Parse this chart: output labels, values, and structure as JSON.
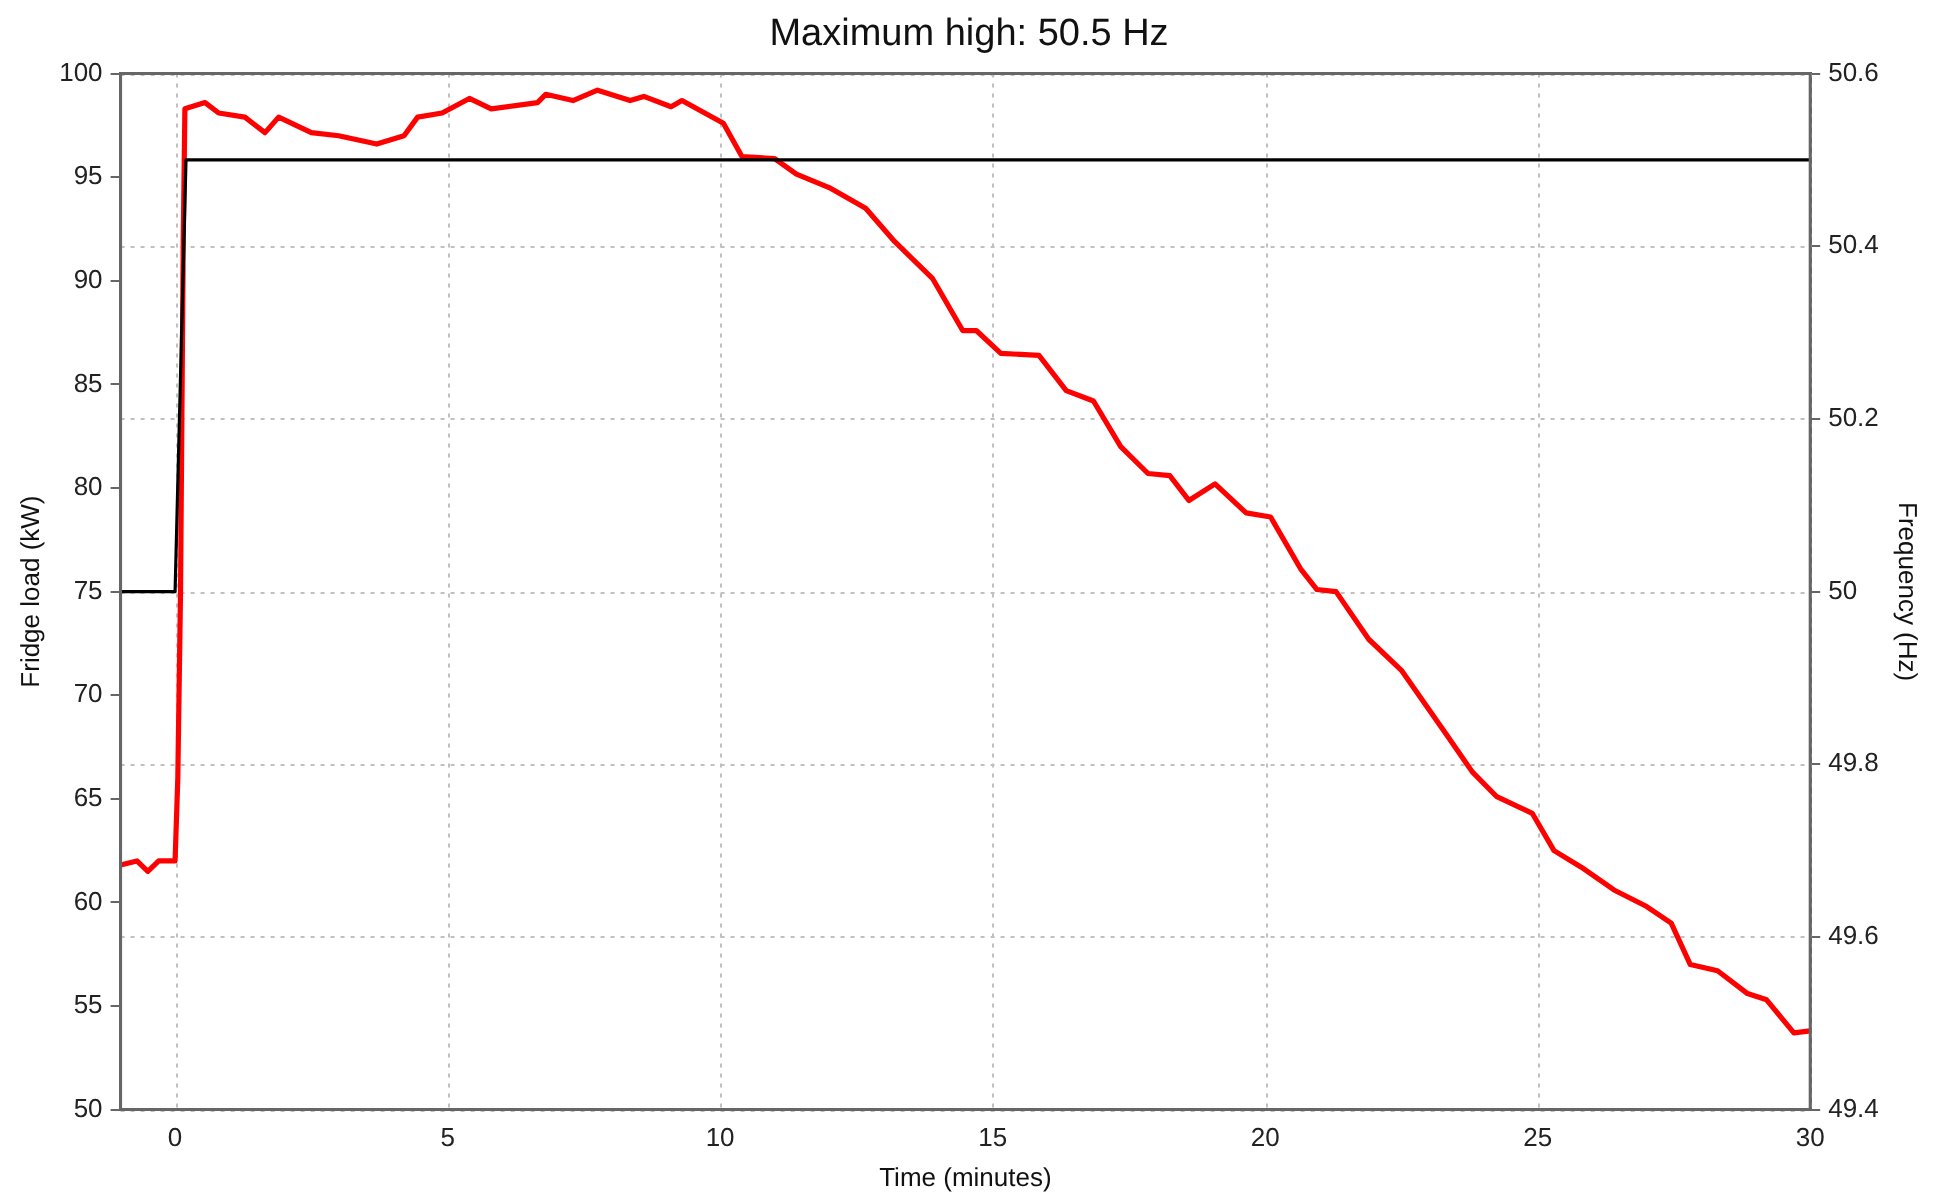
{
  "chart_data": {
    "type": "line",
    "title": "Maximum high: 50.5 Hz",
    "xlabel": "Time (minutes)",
    "ylabel": "Fridge load (kW)",
    "y2label": "Frequency (Hz)",
    "xlim": [
      -1,
      30
    ],
    "xticks": [
      0,
      5,
      10,
      15,
      20,
      25,
      30
    ],
    "ylim": [
      50,
      100
    ],
    "yticks": [
      50,
      55,
      60,
      65,
      70,
      75,
      80,
      85,
      90,
      95,
      100
    ],
    "y2lim": [
      49.4,
      50.6
    ],
    "y2ticks": [
      49.4,
      49.6,
      49.8,
      50,
      50.2,
      50.4,
      50.6
    ],
    "grid": true,
    "legend": false,
    "marker": "none",
    "line_style": "solid",
    "series": [
      {
        "color": "#ff0000",
        "x": [
          -1,
          -0.7,
          -0.5,
          -0.3,
          -0.1,
          0,
          0.05,
          0.1,
          0.15,
          0.18,
          0.55,
          0.8,
          1.28,
          1.65,
          1.9,
          2.5,
          3.0,
          3.7,
          4.2,
          4.45,
          4.9,
          5.4,
          5.8,
          6.65,
          6.8,
          7.3,
          7.75,
          8.35,
          8.6,
          9.1,
          9.3,
          10.06,
          10.4,
          11.0,
          11.4,
          12.0,
          12.67,
          13.2,
          13.9,
          14.45,
          14.7,
          15.15,
          15.85,
          16.35,
          16.85,
          17.35,
          17.85,
          18.25,
          18.6,
          19.08,
          19.65,
          20.1,
          20.65,
          20.95,
          21.3,
          21.9,
          22.5,
          23.3,
          23.8,
          24.25,
          24.9,
          25.3,
          25.8,
          26.4,
          27.0,
          27.45,
          27.8,
          28.3,
          28.85,
          29.2,
          29.7,
          30
        ],
        "values": [
          61.8,
          62,
          61.5,
          62,
          62,
          62,
          66,
          75,
          92,
          98.3,
          98.6,
          98.1,
          97.9,
          97.15,
          97.9,
          97.15,
          97.0,
          96.6,
          97.0,
          97.9,
          98.1,
          98.8,
          98.3,
          98.6,
          99.0,
          98.7,
          99.2,
          98.7,
          98.9,
          98.4,
          98.7,
          97.6,
          96.0,
          95.9,
          95.15,
          94.5,
          93.5,
          91.9,
          90.1,
          87.6,
          87.6,
          86.5,
          86.4,
          84.7,
          84.2,
          82.0,
          80.7,
          80.6,
          79.4,
          80.2,
          78.8,
          78.6,
          76.1,
          75.1,
          75.0,
          72.7,
          71.2,
          68.2,
          66.3,
          65.1,
          64.3,
          62.5,
          61.7,
          60.6,
          59.8,
          59.0,
          57.0,
          56.7,
          55.6,
          55.3,
          53.7,
          53.8
        ]
      },
      {
        "color": "#000000",
        "axis": "y2",
        "x": [
          -1,
          0,
          0.2,
          30
        ],
        "values": [
          50,
          50,
          50.5,
          50.5
        ]
      }
    ]
  }
}
